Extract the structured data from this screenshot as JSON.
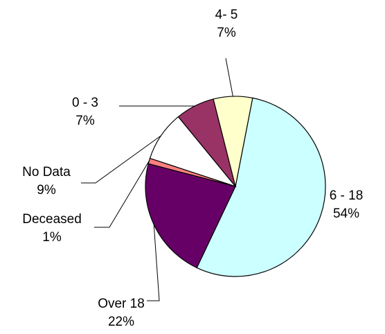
{
  "chart_data": {
    "type": "pie",
    "title": "",
    "slices": [
      {
        "label": "6 - 18",
        "value": 54,
        "percent_label": "54%",
        "color": "#ccffff"
      },
      {
        "label": "Over 18",
        "value": 22,
        "percent_label": "22%",
        "color": "#660066"
      },
      {
        "label": "Deceased",
        "value": 1,
        "percent_label": "1%",
        "color": "#ff8080"
      },
      {
        "label": "No Data",
        "value": 9,
        "percent_label": "9%",
        "color": "#ffffff"
      },
      {
        "label": "0 - 3",
        "value": 7,
        "percent_label": "7%",
        "color": "#993366"
      },
      {
        "label": "4- 5",
        "value": 7,
        "percent_label": "7%",
        "color": "#ffffcc"
      }
    ],
    "legend": "none"
  }
}
